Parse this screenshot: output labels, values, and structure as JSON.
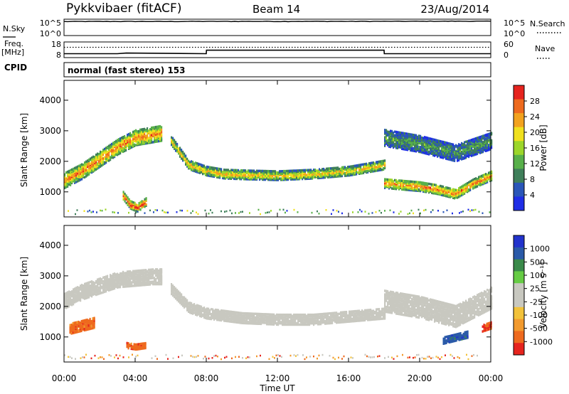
{
  "header": {
    "station": "Pykkvibaer (fitACF)",
    "beam": "Beam 14",
    "date": "23/Aug/2014"
  },
  "side_labels": {
    "nsky": "N.Sky",
    "nsearch": "N.Search",
    "freq": "Freq.",
    "mhz": "[MHz]",
    "nave": "Nave",
    "cpid": "CPID"
  },
  "colors": {
    "power": [
      "#1f2ee6",
      "#2a56b8",
      "#3f7f5a",
      "#58b04a",
      "#9cd62a",
      "#f0e01e",
      "#f2a21e",
      "#ee6a1e",
      "#e6241e"
    ],
    "velocity": [
      "#e6241e",
      "#ee6a1e",
      "#f29a2e",
      "#f2c23a",
      "#c8c8c0",
      "#c8c8c0",
      "#66cc44",
      "#3a8a4a",
      "#2a5aa8",
      "#2233cc"
    ]
  },
  "chart_data": [
    {
      "type": "line",
      "name": "nsky-nsearch",
      "left_ticks": [
        "10^5",
        "10^0"
      ],
      "right_ticks": [
        "10^5",
        "10^0"
      ],
      "x": [
        0,
        2,
        4,
        6,
        8,
        10,
        12,
        14,
        16,
        18,
        20,
        22,
        24
      ],
      "series": [
        {
          "values": [
            85000.0,
            90000.0,
            92000.0,
            88000.0,
            95000.0,
            96000.0,
            94000.0,
            97000.0,
            95000.0,
            100000.0,
            105000.0,
            110000.0,
            108000.0
          ]
        }
      ]
    },
    {
      "type": "line",
      "name": "freq-nave",
      "left_ticks": [
        "18",
        "8"
      ],
      "right_ticks": [
        "60",
        "0"
      ],
      "x": [
        0,
        3,
        3.5,
        8,
        8.01,
        18,
        18.01,
        24
      ],
      "series": [
        {
          "values": [
            10.5,
            10.5,
            11.0,
            10.5,
            13.2,
            13.2,
            10.5,
            10.5
          ]
        }
      ],
      "dotted_level": 15.5
    },
    {
      "type": "table",
      "name": "cpid",
      "program": "normal (fast stereo) 153"
    },
    {
      "type": "heatmap",
      "name": "power",
      "ylabel": "Slant Range [km]",
      "ylim": [
        180,
        4650
      ],
      "y_ticks": [
        "4000",
        "3000",
        "2000",
        "1000"
      ],
      "colorbar": {
        "label": "Power [dB]",
        "ticks": [
          "28",
          "24",
          "20",
          "16",
          "12",
          "8",
          "4"
        ],
        "range": [
          0,
          32
        ]
      },
      "bands": [
        {
          "t": [
            0,
            1,
            2,
            3,
            4,
            5,
            5.5
          ],
          "r": [
            1400,
            1700,
            2100,
            2500,
            2800,
            2900,
            2950
          ],
          "w": 500,
          "level": 0.7
        },
        {
          "t": [
            3.3,
            3.7,
            4.1,
            4.6
          ],
          "r": [
            900,
            600,
            500,
            700
          ],
          "w": 250,
          "level": 0.85
        },
        {
          "t": [
            6,
            6.5,
            7,
            7.5,
            8,
            9,
            10,
            12,
            14,
            16,
            18
          ],
          "r": [
            2700,
            2300,
            1900,
            1800,
            1700,
            1600,
            1580,
            1550,
            1600,
            1700,
            1900
          ],
          "w": 280,
          "level": 0.6
        },
        {
          "t": [
            18,
            19,
            20,
            21,
            22,
            23,
            24
          ],
          "r": [
            1300,
            1250,
            1200,
            1100,
            950,
            1300,
            1550
          ],
          "w": 300,
          "level": 0.7
        },
        {
          "t": [
            18,
            20,
            22,
            24
          ],
          "r": [
            2800,
            2600,
            2300,
            2700
          ],
          "w": 550,
          "level": 0.3
        }
      ]
    },
    {
      "type": "heatmap",
      "name": "velocity",
      "ylabel": "Slant Range [km]",
      "ylim": [
        180,
        4650
      ],
      "y_ticks": [
        "4000",
        "3000",
        "2000",
        "1000"
      ],
      "colorbar": {
        "label": "Velocity [m s⁻¹]",
        "ticks": [
          "1000",
          "500",
          "100",
          "25",
          "-25",
          "-100",
          "-500",
          "-1000"
        ]
      },
      "bands": [
        {
          "t": [
            0,
            1,
            2,
            3,
            4,
            5,
            5.5
          ],
          "r": [
            2200,
            2500,
            2700,
            2900,
            2950,
            3000,
            3000
          ],
          "w": 500,
          "level": 0.5
        },
        {
          "t": [
            0.3,
            1,
            1.7
          ],
          "r": [
            1300,
            1400,
            1500
          ],
          "w": 350,
          "level": 0.15
        },
        {
          "t": [
            3.5,
            4,
            4.6
          ],
          "r": [
            750,
            700,
            750
          ],
          "w": 180,
          "level": 0.15
        },
        {
          "t": [
            6,
            7,
            8,
            10,
            12,
            14,
            16,
            18
          ],
          "r": [
            2600,
            2000,
            1800,
            1650,
            1600,
            1600,
            1700,
            1800
          ],
          "w": 350,
          "level": 0.5
        },
        {
          "t": [
            18,
            20,
            22,
            24
          ],
          "r": [
            2200,
            2000,
            1700,
            2300
          ],
          "w": 700,
          "level": 0.5
        },
        {
          "t": [
            21.3,
            22,
            22.7
          ],
          "r": [
            900,
            1000,
            1100
          ],
          "w": 200,
          "level": 0.85
        },
        {
          "t": [
            23.5,
            24
          ],
          "r": [
            1300,
            1400
          ],
          "w": 200,
          "level": 0.1
        }
      ]
    }
  ],
  "time_axis": {
    "ticks": [
      "00:00",
      "04:00",
      "08:00",
      "12:00",
      "16:00",
      "20:00",
      "00:00"
    ],
    "label": "Time UT"
  }
}
